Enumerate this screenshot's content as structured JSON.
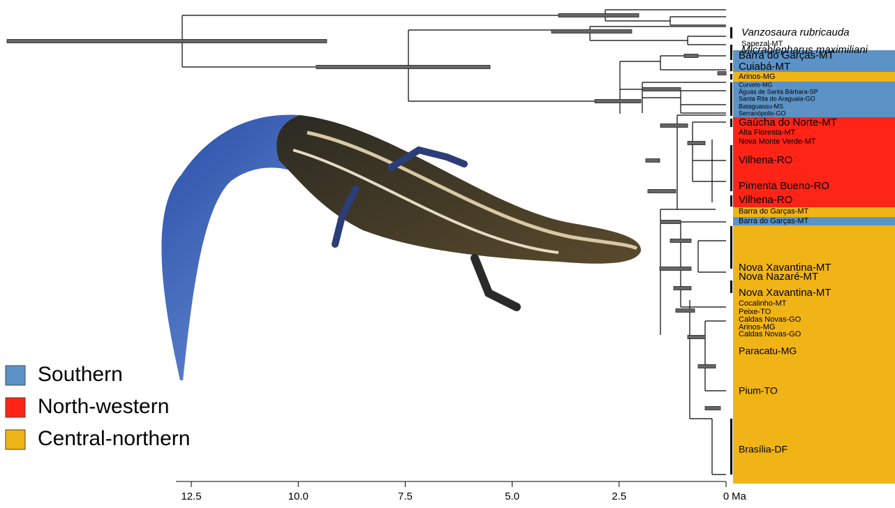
{
  "tree": {
    "outgroups": [
      "Vanzosaura rubricauda",
      "Micrablepharus maximiliani"
    ],
    "bands": [
      {
        "color": "#5b93c6",
        "labels": [
          "Barra do Garças-MT",
          "Cuiabá-MT"
        ]
      },
      {
        "color": "#f0b416",
        "labels": [
          "Arinos-MG"
        ]
      },
      {
        "color": "#5b93c6",
        "labels": [
          "Curvelo-MG",
          "Águas de Santa Bárbara-SP",
          "Santa Rita do Araguaia-GO",
          "Bataguassu-MS",
          "Serranópolis-GO"
        ]
      },
      {
        "color": "#ff2416",
        "labels": [
          "Gaúcha do Norte-MT",
          "Alta Floresta-MT",
          "Nova Monte Verde-MT",
          "Vilhena-RO",
          "Pimenta Bueno-RO",
          "Vilhena-RO"
        ]
      },
      {
        "color": "#f0b416",
        "labels": [
          "Barra do Garças-MT"
        ]
      },
      {
        "color": "#5b93c6",
        "labels": [
          "Barra do Garças-MT"
        ]
      },
      {
        "color": "#f0b416",
        "labels": [
          "Nova Xavantina-MT",
          "Nova Nazaré-MT",
          "Nova Xavantina-MT",
          "Cocalinho-MT",
          "Peixe-TO",
          "Caldas Novas-GO",
          "Arinos-MG",
          "Caldas Novas-GO",
          "Paracatu-MG",
          "Pium-TO",
          "Brasília-DF"
        ]
      }
    ],
    "unbanded": [
      "Sapezal-MT"
    ]
  },
  "axis": {
    "xlim": [
      12.86,
      0
    ],
    "xticks": [
      12.5,
      {
        "value": 10,
        "label": "10.0"
      },
      7.5,
      {
        "value": 5,
        "label": "5.0"
      },
      2.5,
      0
    ],
    "unit": "Ma"
  },
  "legend": [
    {
      "label": "Southern",
      "color": "#5b93c6"
    },
    {
      "label": "North-western",
      "color": "#ff2416"
    },
    {
      "label": "Central-northern",
      "color": "#f0b416"
    }
  ]
}
